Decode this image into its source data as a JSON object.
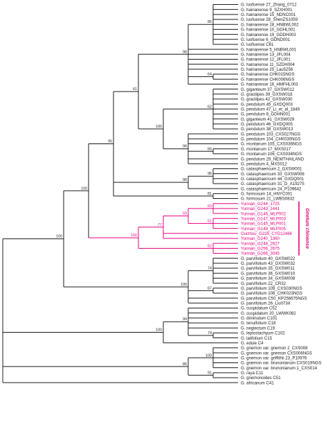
{
  "highlight_color": "#e6007e",
  "branch_color": "#1a1a1a",
  "clade_label": "Gnetum chinense",
  "tree": {
    "children": [
      {
        "bootstrap": "100",
        "children": [
          {
            "bootstrap": "100",
            "children": [
              {
                "bootstrap": "95",
                "children": [
                  {
                    "bootstrap": "61",
                    "children": [
                      {
                        "bootstrap": "98",
                        "children": [
                          {
                            "bootstrap": "85",
                            "children": [
                              {
                                "leaf": true,
                                "label": "G. luofuense 27_Zhang_0712"
                              },
                              {
                                "leaf": true,
                                "label": "G. hainanense 9_SZXH001"
                              },
                              {
                                "leaf": true,
                                "label": "G. hainanense 15_NDNC001"
                              },
                              {
                                "leaf": true,
                                "label": "G. luofuense 28_ShenZS1059"
                              },
                              {
                                "leaf": true,
                                "label": "G. hainanense 18_HNBWL002"
                              },
                              {
                                "leaf": true,
                                "label": "G. hainanense 10_GDHL001"
                              },
                              {
                                "leaf": true,
                                "label": "G. hainanense 19_GDDH003"
                              },
                              {
                                "leaf": true,
                                "label": "G. luofuense 6_GDND001"
                              },
                              {
                                "leaf": true,
                                "label": "G. luofuense C61"
                              }
                            ]
                          },
                          {
                            "leaf": true,
                            "label": "G. hainanense 5_HNBWL001"
                          },
                          {
                            "leaf": true,
                            "label": "G. hainanense 13_JFL004"
                          },
                          {
                            "leaf": true,
                            "label": "G. hainanense 12_JFL001"
                          },
                          {
                            "leaf": true,
                            "label": "G. hainanense 11_SZDH004"
                          },
                          {
                            "leaf": true,
                            "label": "G. hainanense 25_Lau5256"
                          },
                          {
                            "bootstrap": "64",
                            "children": [
                              {
                                "leaf": true,
                                "label": "G. hainanense CHK015NGS"
                              },
                              {
                                "leaf": true,
                                "label": "G. hainanense CHK006NGS"
                              }
                            ]
                          },
                          {
                            "leaf": true,
                            "label": "G. hainanense 16_HMFHL003"
                          }
                        ]
                      },
                      {
                        "bootstrap": "100",
                        "children": [
                          {
                            "bootstrap": "62",
                            "children": [
                              {
                                "leaf": true,
                                "label": "G. giganteum 37_GXSW012"
                              },
                              {
                                "leaf": true,
                                "label": "G. gracilipes 39_GXSW018"
                              },
                              {
                                "leaf": true,
                                "label": "G. gracilipes 42_GXSW030"
                              },
                              {
                                "leaf": true,
                                "label": "G. pendulum 45_GXDQ003"
                              },
                              {
                                "leaf": true,
                                "label": "G. pendulum 47_Li_et_al_1849"
                              },
                              {
                                "leaf": true,
                                "label": "G. pendulum 8_GDHN001"
                              },
                              {
                                "leaf": true,
                                "label": "G. giganteum 41_GXSW029"
                              },
                              {
                                "leaf": true,
                                "label": "G. pendulum 46_GXDQ005"
                              },
                              {
                                "leaf": true,
                                "label": "G. pendulum 38_GXSW013"
                              }
                            ]
                          },
                          {
                            "bootstrap": "98",
                            "children": [
                              {
                                "leaf": true,
                                "label": "G. pendulum 103_CXS027NGS"
                              },
                              {
                                "leaf": true,
                                "label": "G. pendulum 104_CHK030NGS"
                              },
                              {
                                "leaf": true,
                                "label": "G. montanum 105_CXS036NGS"
                              },
                              {
                                "bootstrap": "66",
                                "children": [
                                  {
                                    "leaf": true,
                                    "label": "G. montanum 17_MXS017"
                                  },
                                  {
                                    "leaf": true,
                                    "label": "G. montanum 106_CXS034NGS"
                                  }
                                ]
                              },
                              {
                                "leaf": true,
                                "label": "G. pendulum 29_NEWTHAILAND"
                              },
                              {
                                "leaf": true,
                                "label": "G. pendulum 4_MXS012"
                              }
                            ]
                          }
                        ]
                      }
                    ]
                  },
                  {
                    "bootstrap": "98",
                    "children": [
                      {
                        "bootstrap": "96",
                        "children": [
                          {
                            "leaf": true,
                            "label": "G. catasphaericum 2_GXSW001"
                          },
                          {
                            "leaf": true,
                            "label": "G. catasphaericum 33_GXSW006"
                          },
                          {
                            "leaf": true,
                            "label": "G. catasphaericum 44_GXDQ001"
                          },
                          {
                            "leaf": true,
                            "label": "G. catasphaericum 31_D_A19275"
                          }
                        ]
                      },
                      {
                        "leaf": true,
                        "label": "G. catasphaericum 24_P109642"
                      }
                    ]
                  },
                  {
                    "bootstrap": "81",
                    "children": [
                      {
                        "leaf": true,
                        "label": "G. formosum 14_HNYC001"
                      },
                      {
                        "leaf": true,
                        "label": "G. formosum 21_LWBS0832"
                      }
                    ]
                  }
                ]
              },
              {
                "bootstrap": "100",
                "highlight": true,
                "children": [
                  {
                    "bootstrap": "77",
                    "highlight": true,
                    "children": [
                      {
                        "bootstrap": "59",
                        "highlight": true,
                        "children": [
                          {
                            "bootstrap": "63",
                            "highlight": true,
                            "children": [
                              {
                                "leaf": true,
                                "highlight": true,
                                "label": "Yunnan_G244_1725"
                              },
                              {
                                "leaf": true,
                                "highlight": true,
                                "label": "Yunnan_G243_1441"
                              },
                              {
                                "leaf": true,
                                "highlight": true,
                                "label": "Yunnan_G146_MLP002"
                              }
                            ]
                          },
                          {
                            "bootstrap": "51",
                            "highlight": true,
                            "children": [
                              {
                                "leaf": true,
                                "highlight": true,
                                "label": "Yunnan_G147_MLP003"
                              },
                              {
                                "leaf": true,
                                "highlight": true,
                                "label": "Yunnan_G145_MLP001"
                              },
                              {
                                "leaf": true,
                                "highlight": true,
                                "label": "Yunnan_G149_MLP005"
                              }
                            ]
                          }
                        ]
                      },
                      {
                        "leaf": true,
                        "highlight": true,
                        "label": "Guizhou_G239_CYD12466"
                      },
                      {
                        "leaf": true,
                        "highlight": true,
                        "label": "Yunnan_G240_1360"
                      }
                    ]
                  },
                  {
                    "bootstrap": "62",
                    "highlight": true,
                    "children": [
                      {
                        "leaf": true,
                        "highlight": true,
                        "label": "Yunnan_G248_2627"
                      },
                      {
                        "leaf": true,
                        "highlight": true,
                        "label": "Yunnan_G256_2675"
                      },
                      {
                        "leaf": true,
                        "highlight": true,
                        "label": "Yunnan_G266_3045"
                      }
                    ]
                  }
                ]
              }
            ]
          },
          {
            "bootstrap": "100",
            "children": [
              {
                "bootstrap": "74",
                "children": [
                  {
                    "leaf": true,
                    "label": "G. parvifolium 40_GXSW022"
                  },
                  {
                    "leaf": true,
                    "label": "G. parvifolium 43_GXSW032"
                  },
                  {
                    "leaf": true,
                    "label": "G. parvifolium 35_GXSW011"
                  },
                  {
                    "leaf": true,
                    "label": "G. parvifolium 36_GXSW010"
                  },
                  {
                    "leaf": true,
                    "label": "G. parvifolium 34_GXSW008"
                  },
                  {
                    "leaf": true,
                    "label": "G. parvifolium 22_CR32"
                  }
                ]
              },
              {
                "bootstrap": "67",
                "children": [
                  {
                    "leaf": true,
                    "label": "G. parvifolium 109_CXS030NGS"
                  },
                  {
                    "leaf": true,
                    "label": "G. parvifolium 108_CHK023NGS"
                  }
                ]
              },
              {
                "leaf": true,
                "label": "G. parvifolium C50_KP256675NGS"
              },
              {
                "leaf": true,
                "label": "G. parvifolium 26_Liu0734"
              }
            ]
          }
        ]
      },
      {
        "bootstrap": "100",
        "children": [
          {
            "bootstrap": "99",
            "children": [
              {
                "leaf": true,
                "label": "G. cuspidatum C52"
              },
              {
                "leaf": true,
                "label": "G. cuspidatum 20_LWWK082"
              },
              {
                "leaf": true,
                "label": "G. diminutum C101"
              },
              {
                "leaf": true,
                "label": "G. tenuifolium C18"
              },
              {
                "leaf": true,
                "label": "G. neglectum C19"
              },
              {
                "bootstrap": "74",
                "children": [
                  {
                    "leaf": true,
                    "label": "G. leptostachyum C102"
                  },
                  {
                    "leaf": true,
                    "label": "G. latifolium C15"
                  }
                ]
              }
            ]
          },
          {
            "leaf": true,
            "label": "G. edule C4"
          }
        ]
      },
      {
        "bootstrap": "85",
        "children": [
          {
            "bootstrap": "100",
            "children": [
              {
                "leaf": true,
                "label": "G. gnemon var. gnemon 2_CXS008"
              },
              {
                "leaf": true,
                "label": "G. gnemon var. gnemon CXS006NGS"
              },
              {
                "leaf": true,
                "label": "G. gnemon var. griffithii 23_P10976"
              },
              {
                "leaf": true,
                "label": "G. gnemon var. brunonianum CXS019NGS"
              },
              {
                "leaf": true,
                "label": "G. gnemon var. brunonianum 1_CXS014"
              }
            ]
          },
          {
            "bootstrap": "91",
            "children": [
              {
                "leaf": true,
                "label": "G. raya C11"
              },
              {
                "leaf": true,
                "label": "G. gnemonoides C51"
              }
            ]
          }
        ]
      },
      {
        "leaf": true,
        "label": "G. africanum C41"
      }
    ]
  }
}
